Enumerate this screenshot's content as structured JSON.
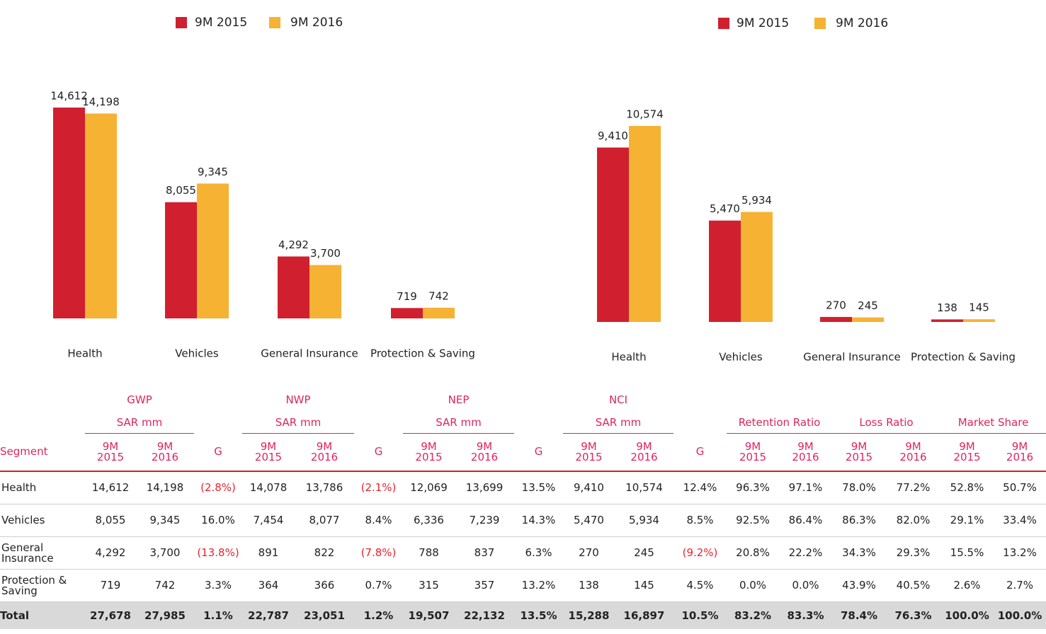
{
  "chart_data": [
    {
      "type": "bar",
      "categories": [
        "Health",
        "Vehicles",
        "General Insurance",
        "Protection & Saving"
      ],
      "series": [
        {
          "name": "9M 2015",
          "color": "#d0202f",
          "values": [
            14612,
            8055,
            4292,
            719
          ],
          "value_labels": [
            "14,612",
            "8,055",
            "4,292",
            "719"
          ]
        },
        {
          "name": "9M 2016",
          "color": "#f6b233",
          "values": [
            14198,
            9345,
            3700,
            742
          ],
          "value_labels": [
            "14,198",
            "9,345",
            "3,700",
            "742"
          ]
        }
      ]
    },
    {
      "type": "bar",
      "categories": [
        "Health",
        "Vehicles",
        "General Insurance",
        "Protection & Saving"
      ],
      "series": [
        {
          "name": "9M 2015",
          "color": "#d0202f",
          "values": [
            9410,
            5470,
            270,
            138
          ],
          "value_labels": [
            "9,410",
            "5,470",
            "270",
            "138"
          ]
        },
        {
          "name": "9M 2016",
          "color": "#f6b233",
          "values": [
            10574,
            5934,
            245,
            145
          ],
          "value_labels": [
            "10,574",
            "5,934",
            "245",
            "145"
          ]
        }
      ]
    }
  ],
  "table": {
    "groups": [
      {
        "name": "GWP",
        "unit": "SAR mm",
        "span": 2,
        "gap": true
      },
      {
        "name": "NWP",
        "unit": "SAR mm",
        "span": 2,
        "gap": true
      },
      {
        "name": "NEP",
        "unit": "SAR mm",
        "span": 2,
        "gap": true
      },
      {
        "name": "NCI",
        "unit": "SAR mm",
        "span": 2,
        "gap": true
      },
      {
        "name": "Retention Ratio",
        "span": 2
      },
      {
        "name": "Loss Ratio",
        "span": 2
      },
      {
        "name": "Market Share",
        "span": 2
      }
    ],
    "header": [
      "Segment",
      "9M 2015",
      "9M 2016",
      "G",
      "9M 2015",
      "9M 2016",
      "G",
      "9M 2015",
      "9M 2016",
      "G",
      "9M 2015",
      "9M 2016",
      "G",
      "9M 2015",
      "9M 2016",
      "9M 2015",
      "9M 2016",
      "9M 2015",
      "9M 2016"
    ],
    "rows": [
      [
        "Health",
        "14,612",
        "14,198",
        "(2.8%)",
        "14,078",
        "13,786",
        "(2.1%)",
        "12,069",
        "13,699",
        "13.5%",
        "9,410",
        "10,574",
        "12.4%",
        "96.3%",
        "97.1%",
        "78.0%",
        "77.2%",
        "52.8%",
        "50.7%"
      ],
      [
        "Vehicles",
        "8,055",
        "9,345",
        "16.0%",
        "7,454",
        "8,077",
        "8.4%",
        "6,336",
        "7,239",
        "14.3%",
        "5,470",
        "5,934",
        "8.5%",
        "92.5%",
        "86.4%",
        "86.3%",
        "82.0%",
        "29.1%",
        "33.4%"
      ],
      [
        "General Insurance",
        "4,292",
        "3,700",
        "(13.8%)",
        "891",
        "822",
        "(7.8%)",
        "788",
        "837",
        "6.3%",
        "270",
        "245",
        "(9.2%)",
        "20.8%",
        "22.2%",
        "34.3%",
        "29.3%",
        "15.5%",
        "13.2%"
      ],
      [
        "Protection & Saving",
        "719",
        "742",
        "3.3%",
        "364",
        "366",
        "0.7%",
        "315",
        "357",
        "13.2%",
        "138",
        "145",
        "4.5%",
        "0.0%",
        "0.0%",
        "43.9%",
        "40.5%",
        "2.6%",
        "2.7%"
      ],
      [
        "Total",
        "27,678",
        "27,985",
        "1.1%",
        "22,787",
        "23,051",
        "1.2%",
        "19,507",
        "22,132",
        "13.5%",
        "15,288",
        "16,897",
        "10.5%",
        "83.2%",
        "83.3%",
        "78.4%",
        "76.3%",
        "100.0%",
        "100.0%"
      ]
    ]
  }
}
